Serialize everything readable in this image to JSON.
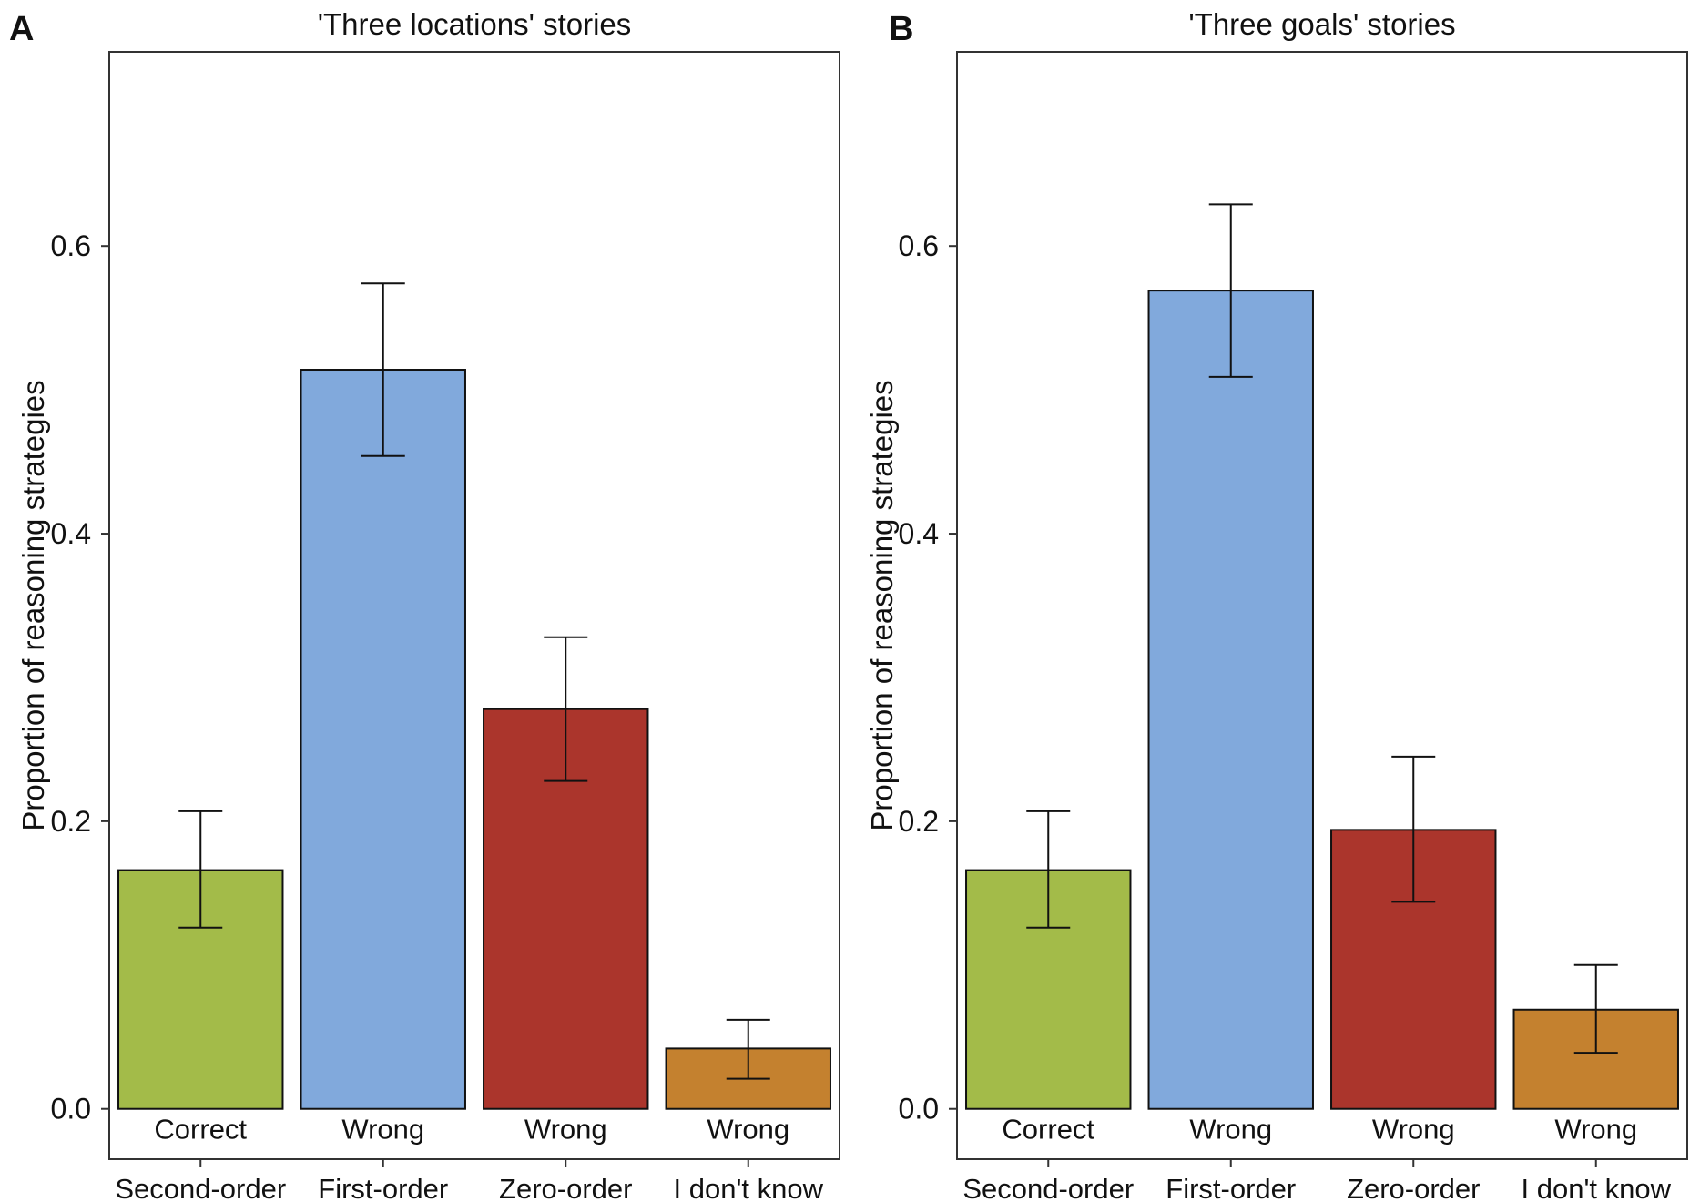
{
  "figure": {
    "ylabel": "Proportion of reasoning strategies",
    "colors": [
      "#a3bb49",
      "#81a9dc",
      "#ab352c",
      "#c4812f"
    ]
  },
  "chart_data": [
    {
      "type": "bar",
      "panel_label": "A",
      "title": "'Three locations' stories",
      "ylabel": "Proportion of reasoning strategies",
      "ylim": [
        -0.035,
        0.735
      ],
      "yticks": [
        0.0,
        0.2,
        0.4,
        0.6
      ],
      "ytick_labels": [
        "0.0",
        "0.2",
        "0.4",
        "0.6"
      ],
      "categories": [
        "Second-order",
        "First-order",
        "Zero-order",
        "I don't know"
      ],
      "bar_labels": [
        "Correct",
        "Wrong",
        "Wrong",
        "Wrong"
      ],
      "values": [
        0.166,
        0.514,
        0.278,
        0.042
      ],
      "error_low": [
        0.126,
        0.454,
        0.228,
        0.021
      ],
      "error_high": [
        0.207,
        0.574,
        0.328,
        0.062
      ]
    },
    {
      "type": "bar",
      "panel_label": "B",
      "title": "'Three goals' stories",
      "ylabel": "Proportion of reasoning strategies",
      "ylim": [
        -0.035,
        0.735
      ],
      "yticks": [
        0.0,
        0.2,
        0.4,
        0.6
      ],
      "ytick_labels": [
        "0.0",
        "0.2",
        "0.4",
        "0.6"
      ],
      "categories": [
        "Second-order",
        "First-order",
        "Zero-order",
        "I don't know"
      ],
      "bar_labels": [
        "Correct",
        "Wrong",
        "Wrong",
        "Wrong"
      ],
      "values": [
        0.166,
        0.569,
        0.194,
        0.069
      ],
      "error_low": [
        0.126,
        0.509,
        0.144,
        0.039
      ],
      "error_high": [
        0.207,
        0.629,
        0.245,
        0.1
      ]
    }
  ]
}
